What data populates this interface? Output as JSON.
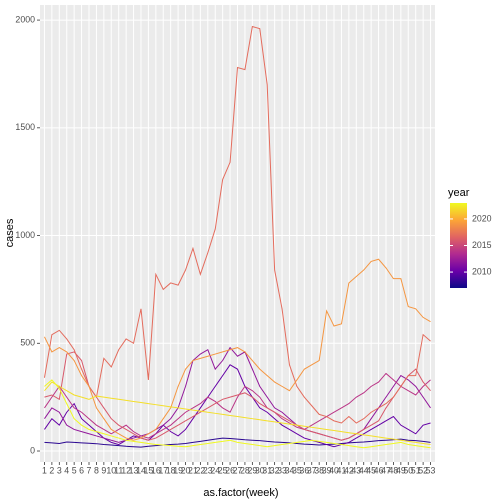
{
  "chart_data": {
    "type": "line",
    "x_label": "as.factor(week)",
    "y_label": "cases",
    "categories": [
      "1",
      "2",
      "3",
      "4",
      "5",
      "6",
      "7",
      "8",
      "9",
      "10",
      "11",
      "12",
      "13",
      "14",
      "15",
      "16",
      "17",
      "18",
      "19",
      "20",
      "21",
      "22",
      "23",
      "24",
      "25",
      "26",
      "27",
      "28",
      "29",
      "30",
      "31",
      "32",
      "33",
      "34",
      "35",
      "36",
      "37",
      "38",
      "39",
      "40",
      "41",
      "42",
      "43",
      "44",
      "45",
      "46",
      "47",
      "48",
      "49",
      "50",
      "51",
      "52",
      "53"
    ],
    "ylim": [
      -51,
      2070
    ],
    "yticks": [
      0,
      500,
      1000,
      1500,
      2000
    ],
    "grid": true,
    "legend": {
      "title": "year",
      "position": "right",
      "lim": [
        2007,
        2023
      ],
      "ticks": [
        2010,
        2015,
        2020
      ],
      "palette": [
        "#0d0887",
        "#6a00a8",
        "#b12a90",
        "#e16462",
        "#fca636",
        "#f0f921"
      ]
    },
    "series": [
      {
        "year": 2008,
        "values": [
          40,
          38,
          35,
          42,
          40,
          38,
          36,
          34,
          30,
          28,
          25,
          22,
          20,
          18,
          22,
          25,
          28,
          30,
          32,
          35,
          40,
          45,
          50,
          55,
          60,
          58,
          55,
          52,
          50,
          48,
          45,
          42,
          40,
          38,
          35,
          32,
          30,
          28,
          30,
          32,
          35,
          38,
          40,
          42,
          45,
          48,
          50,
          52,
          55,
          50,
          48,
          45,
          40
        ]
      },
      {
        "year": 2010,
        "values": [
          100,
          150,
          120,
          180,
          220,
          150,
          120,
          90,
          60,
          40,
          30,
          50,
          70,
          60,
          50,
          80,
          120,
          90,
          70,
          100,
          150,
          200,
          250,
          300,
          350,
          400,
          380,
          300,
          250,
          200,
          180,
          150,
          120,
          100,
          80,
          60,
          50,
          40,
          30,
          20,
          30,
          40,
          60,
          80,
          100,
          120,
          140,
          160,
          120,
          100,
          80,
          120,
          130
        ]
      },
      {
        "year": 2012,
        "values": [
          150,
          200,
          180,
          120,
          100,
          90,
          80,
          70,
          60,
          50,
          40,
          50,
          60,
          70,
          80,
          100,
          120,
          150,
          200,
          300,
          420,
          450,
          470,
          380,
          420,
          480,
          440,
          460,
          380,
          300,
          250,
          200,
          180,
          150,
          120,
          100,
          90,
          80,
          70,
          60,
          50,
          60,
          80,
          100,
          150,
          200,
          250,
          300,
          350,
          330,
          300,
          250,
          200
        ]
      },
      {
        "year": 2014,
        "values": [
          200,
          250,
          300,
          250,
          200,
          180,
          150,
          120,
          100,
          80,
          100,
          120,
          90,
          70,
          60,
          80,
          100,
          120,
          150,
          180,
          200,
          220,
          250,
          230,
          200,
          180,
          250,
          300,
          280,
          250,
          200,
          180,
          150,
          130,
          110,
          100,
          120,
          140,
          160,
          180,
          200,
          220,
          250,
          270,
          300,
          320,
          360,
          330,
          300,
          280,
          260,
          300,
          330
        ]
      },
      {
        "year": 2016,
        "values": [
          250,
          260,
          240,
          450,
          460,
          420,
          300,
          250,
          200,
          150,
          120,
          100,
          80,
          60,
          50,
          60,
          80,
          100,
          120,
          140,
          160,
          180,
          200,
          220,
          240,
          250,
          260,
          270,
          250,
          220,
          200,
          180,
          160,
          140,
          120,
          100,
          90,
          80,
          70,
          60,
          50,
          60,
          80,
          100,
          120,
          140,
          200,
          250,
          300,
          350,
          380,
          320,
          280
        ]
      },
      {
        "year": 2017,
        "values": [
          340,
          540,
          560,
          520,
          470,
          380,
          300,
          250,
          430,
          390,
          470,
          520,
          500,
          660,
          330,
          820,
          750,
          780,
          770,
          840,
          940,
          820,
          920,
          1030,
          1260,
          1340,
          1780,
          1770,
          1970,
          1960,
          1700,
          840,
          660,
          400,
          300,
          250,
          210,
          170,
          160,
          140,
          130,
          160,
          130,
          150,
          180,
          200,
          220,
          250,
          300,
          350,
          350,
          540,
          510
        ]
      },
      {
        "year": 2019,
        "values": [
          530,
          460,
          480,
          460,
          420,
          350,
          300,
          200,
          150,
          100,
          80,
          60,
          50,
          60,
          80,
          100,
          150,
          200,
          300,
          380,
          420,
          430,
          440,
          450,
          460,
          470,
          480,
          460,
          420,
          380,
          350,
          320,
          300,
          280,
          330,
          380,
          400,
          420,
          650,
          580,
          590,
          780,
          810,
          840,
          880,
          890,
          850,
          800,
          800,
          670,
          660,
          620,
          600
        ]
      },
      {
        "year": 2022,
        "values": [
          280,
          320,
          300,
          280,
          260,
          250,
          240,
          255,
          250,
          245,
          240,
          235,
          230,
          225,
          220,
          215,
          210,
          205,
          200,
          195,
          190,
          185,
          180,
          175,
          170,
          165,
          160,
          155,
          150,
          145,
          140,
          135,
          130,
          125,
          120,
          115,
          110,
          105,
          100,
          95,
          90,
          85,
          80,
          75,
          70,
          65,
          60,
          55,
          50,
          45,
          40,
          35,
          30
        ]
      },
      {
        "year": 2023,
        "values": [
          300,
          330,
          290,
          220,
          150,
          120,
          100,
          90,
          80,
          70,
          60,
          50,
          45,
          40,
          35,
          30,
          28,
          25,
          22,
          20,
          25,
          30,
          35,
          40,
          45,
          50,
          40,
          35,
          30,
          25,
          20,
          25,
          30,
          35,
          40,
          45,
          50,
          45,
          40,
          35,
          30,
          25,
          20,
          15,
          20,
          25,
          30,
          35,
          40,
          30,
          25,
          20,
          15
        ]
      }
    ]
  }
}
